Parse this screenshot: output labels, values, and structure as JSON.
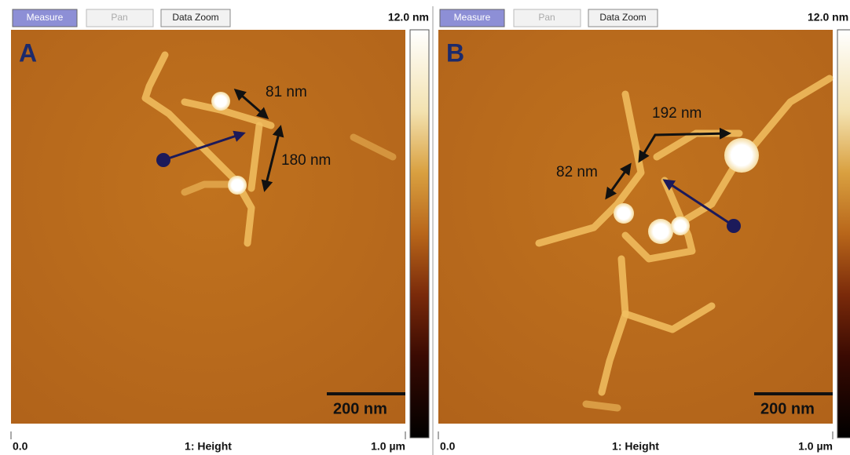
{
  "panels": [
    {
      "buttons": [
        "Measure",
        "Pan",
        "Data Zoom"
      ],
      "scale_max": "12.0 nm",
      "letter": "A",
      "annotations": [
        "81 nm",
        "180 nm"
      ],
      "scale_bar": "200 nm",
      "footer": {
        "left": "0.0",
        "center": "1: Height",
        "right": "1.0 µm"
      }
    },
    {
      "buttons": [
        "Measure",
        "Pan",
        "Data Zoom"
      ],
      "scale_max": "12.0 nm",
      "letter": "B",
      "annotations": [
        "192 nm",
        "82 nm"
      ],
      "scale_bar": "200 nm",
      "footer": {
        "left": "0.0",
        "center": "1: Height",
        "right": "1.0 µm"
      }
    }
  ]
}
